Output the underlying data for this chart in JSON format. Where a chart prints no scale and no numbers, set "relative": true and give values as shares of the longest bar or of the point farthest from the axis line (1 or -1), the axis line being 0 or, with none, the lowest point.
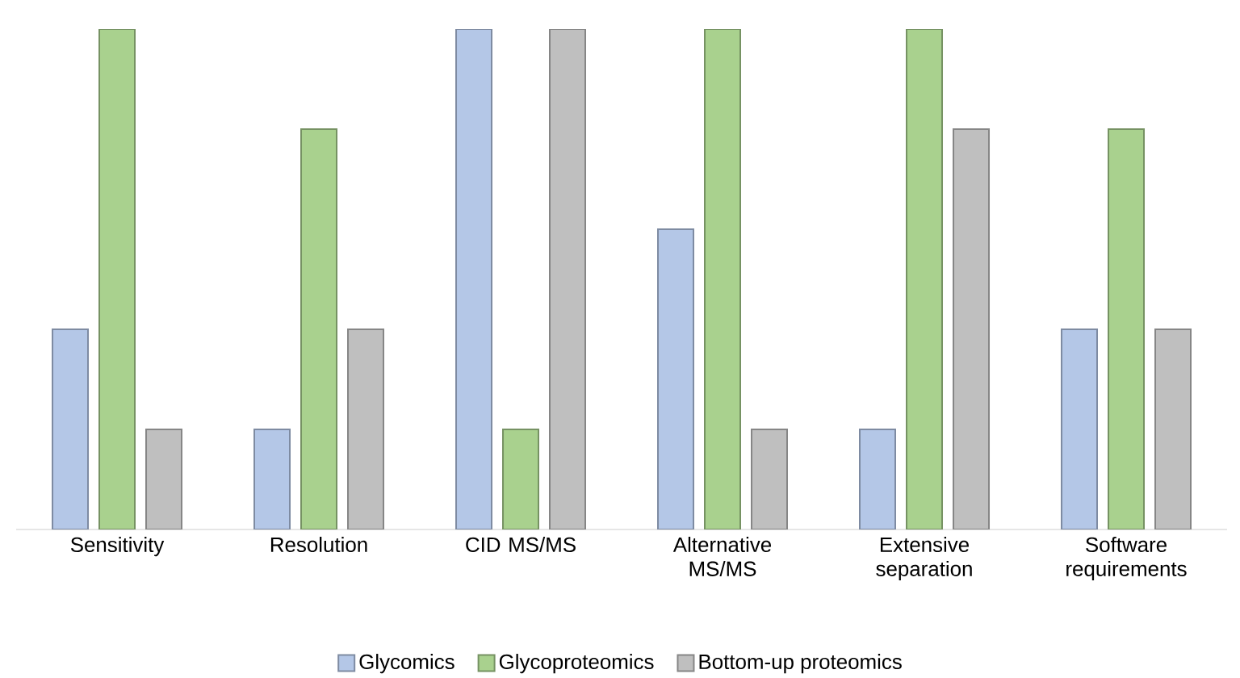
{
  "chart_data": {
    "type": "bar",
    "relative": true,
    "legend": "bottom",
    "categories": [
      "Sensitivity",
      "Resolution",
      "CID MS/MS",
      "Alternative MS/MS",
      "Extensive separation",
      "Software requirements"
    ],
    "series": [
      {
        "name": "Glycomics",
        "color": "#b4c7e7",
        "values": [
          0.4,
          0.2,
          1,
          0.6,
          0.2,
          0.4
        ]
      },
      {
        "name": "Glycoproteomics",
        "color": "#a9d18e",
        "values": [
          1,
          0.8,
          0.2,
          1,
          1,
          0.8
        ]
      },
      {
        "name": "Bottom-up proteomics",
        "color": "#bfbfbf",
        "values": [
          0.2,
          0.4,
          1,
          0.2,
          0.8,
          0.4
        ]
      }
    ]
  }
}
